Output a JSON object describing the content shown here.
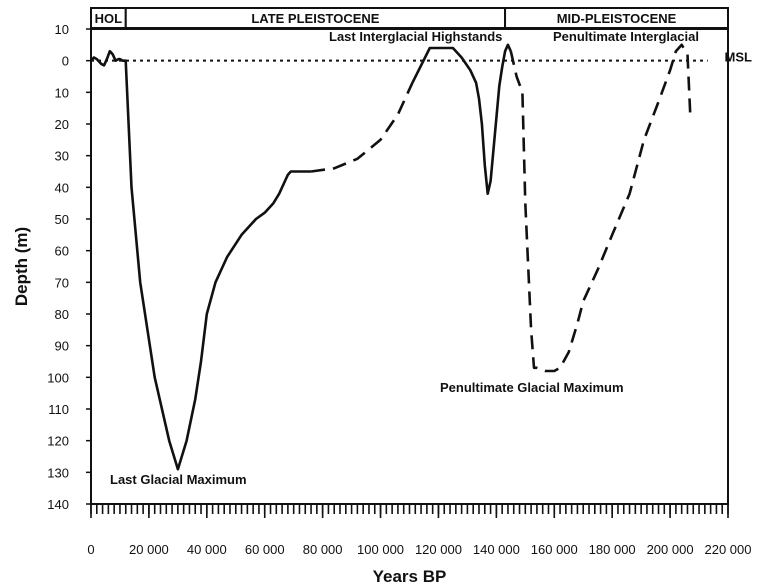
{
  "chart_data": {
    "type": "line",
    "title": "",
    "xlabel": "Years BP",
    "ylabel": "Depth (m)",
    "xlim": [
      0,
      220000
    ],
    "ylim": [
      -10,
      140
    ],
    "y_inverted": true,
    "grid": false,
    "x_ticks": [
      {
        "value": 0,
        "label": "0"
      },
      {
        "value": 20000,
        "label": "20 000"
      },
      {
        "value": 40000,
        "label": "40 000"
      },
      {
        "value": 60000,
        "label": "60 000"
      },
      {
        "value": 80000,
        "label": "80 000"
      },
      {
        "value": 100000,
        "label": "100 000"
      },
      {
        "value": 120000,
        "label": "120 000"
      },
      {
        "value": 140000,
        "label": "140 000"
      },
      {
        "value": 160000,
        "label": "160 000"
      },
      {
        "value": 180000,
        "label": "180 000"
      },
      {
        "value": 200000,
        "label": "200 000"
      },
      {
        "value": 220000,
        "label": "220 000"
      }
    ],
    "y_ticks": [
      {
        "value": -10,
        "label": "10"
      },
      {
        "value": 0,
        "label": "0"
      },
      {
        "value": 10,
        "label": "10"
      },
      {
        "value": 20,
        "label": "20"
      },
      {
        "value": 30,
        "label": "30"
      },
      {
        "value": 40,
        "label": "40"
      },
      {
        "value": 50,
        "label": "50"
      },
      {
        "value": 60,
        "label": "60"
      },
      {
        "value": 70,
        "label": "70"
      },
      {
        "value": 80,
        "label": "80"
      },
      {
        "value": 90,
        "label": "90"
      },
      {
        "value": 100,
        "label": "100"
      },
      {
        "value": 110,
        "label": "110"
      },
      {
        "value": 120,
        "label": "120"
      },
      {
        "value": 130,
        "label": "130"
      },
      {
        "value": 140,
        "label": "140"
      }
    ],
    "minor_tick_step": 2000,
    "epochs": [
      {
        "label": "HOL",
        "start": 0,
        "end": 12000
      },
      {
        "label": "LATE PLEISTOCENE",
        "start": 12000,
        "end": 143000
      },
      {
        "label": "MID-PLEISTOCENE",
        "start": 143000,
        "end": 220000
      }
    ],
    "msl": {
      "label": "MSL",
      "value": 0,
      "from": 0,
      "to": 213000
    },
    "series": [
      {
        "style": "solid",
        "x": [
          0,
          1000,
          2000,
          3500,
          4500,
          5500,
          6500,
          7500,
          8500,
          9500,
          10000,
          11000,
          12000,
          14000,
          17000,
          22000,
          27000,
          30000,
          33000,
          36000,
          38000,
          40000,
          43000,
          47000,
          52000,
          57000,
          60000,
          63000,
          65000,
          67000,
          68000,
          69000,
          70000,
          73000,
          76000
        ],
        "y": [
          0,
          -1,
          -0.5,
          1,
          1.5,
          -0.5,
          -3,
          -2,
          0,
          -0.5,
          -0.5,
          0,
          0,
          40,
          70,
          100,
          120,
          129,
          120,
          107,
          95,
          80,
          70,
          62,
          55,
          50,
          48,
          45,
          42,
          38,
          36,
          35,
          35,
          35,
          35
        ]
      },
      {
        "style": "dashed",
        "x": [
          76000,
          84000,
          92000,
          100000,
          106000,
          111000
        ],
        "y": [
          35,
          34,
          31,
          25,
          17,
          7
        ]
      },
      {
        "style": "solid",
        "x": [
          111000,
          117000,
          121000,
          125000,
          128000,
          131000,
          133000,
          134000,
          135000,
          136000,
          137000,
          138000,
          140000,
          141000,
          142000,
          143000,
          144000,
          145000
        ],
        "y": [
          7,
          -4,
          -4,
          -4,
          -1,
          3,
          7,
          12,
          20,
          33,
          42,
          38,
          18,
          8,
          2,
          -3,
          -5,
          -3
        ]
      },
      {
        "style": "dashed",
        "x": [
          145000,
          147000,
          149000,
          150000,
          152000,
          153000,
          154000,
          157000,
          160000,
          162000,
          165000,
          168000,
          170000,
          172000,
          175000,
          180000,
          186000,
          191000,
          196000,
          200000,
          202000,
          204000,
          206000,
          207000
        ],
        "y": [
          -3,
          5,
          10,
          45,
          85,
          97,
          97,
          98,
          98,
          97,
          92,
          83,
          76,
          72,
          66,
          55,
          42,
          25,
          13,
          3,
          -3,
          -5,
          -2,
          18
        ]
      }
    ],
    "annotations": [
      {
        "text": "Last Interglacial Highstands"
      },
      {
        "text": "Penultimate Interglacial"
      },
      {
        "text": "Penultimate Glacial Maximum"
      },
      {
        "text": "Last Glacial Maximum"
      }
    ]
  }
}
